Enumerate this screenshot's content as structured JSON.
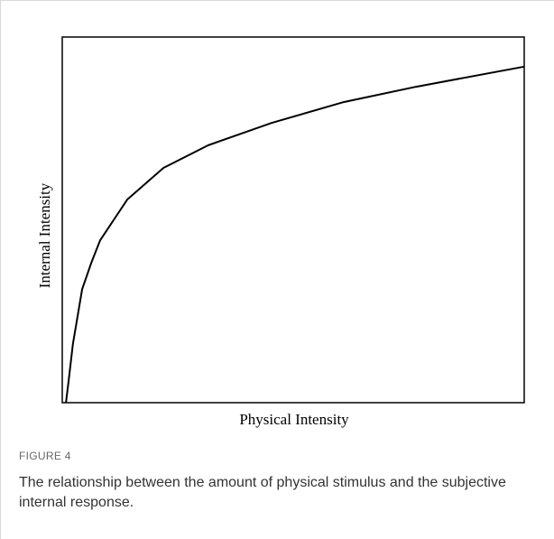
{
  "chart_data": {
    "type": "line",
    "xlabel": "Physical Intensity",
    "ylabel": "Internal Intensity",
    "x": [
      0.008,
      0.014,
      0.023,
      0.043,
      0.063,
      0.082,
      0.141,
      0.219,
      0.316,
      0.453,
      0.609,
      0.766,
      1.0
    ],
    "y": [
      0.0,
      0.062,
      0.16,
      0.31,
      0.383,
      0.444,
      0.556,
      0.642,
      0.704,
      0.765,
      0.822,
      0.864,
      0.919
    ],
    "color": "#000000",
    "xlim": [
      0,
      1
    ],
    "ylim": [
      0,
      1
    ]
  },
  "figure_label": "FIGURE 4",
  "caption": "The relationship between the amount of physical stimulus and the subjective internal response."
}
